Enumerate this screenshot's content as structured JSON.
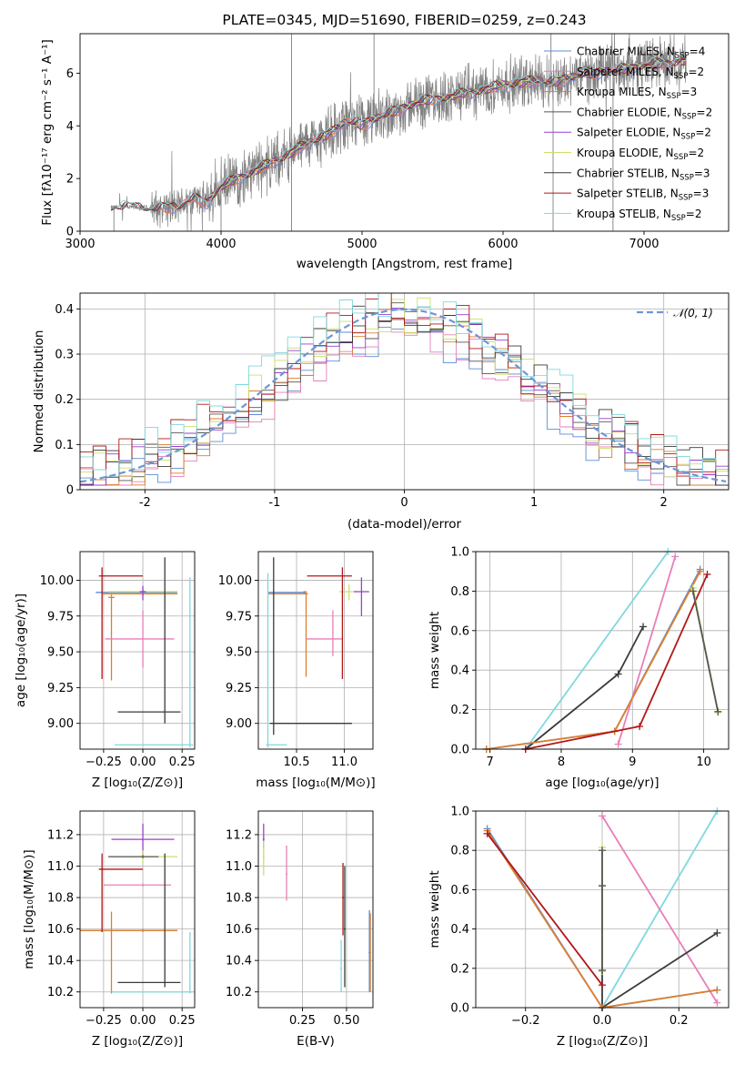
{
  "colors": {
    "chabrier_miles": "#5b8dd6",
    "salpeter_miles": "#e87fb8",
    "kroupa_miles": "#dd7f2e",
    "chabrier_elodie": "#555555",
    "salpeter_elodie": "#9b3fcf",
    "kroupa_elodie": "#c9e06a",
    "chabrier_stelib": "#3a3a3a",
    "salpeter_stelib": "#b01818",
    "kroupa_stelib": "#7fd8df",
    "data": "#808080",
    "gauss": "#6b96d8"
  },
  "legend_entries": [
    {
      "key": "chabrier_miles",
      "label": "Chabrier MILES, N",
      "sub": "SSP",
      "suffix": "=4"
    },
    {
      "key": "salpeter_miles",
      "label": "Salpeter MILES, N",
      "sub": "SSP",
      "suffix": "=2"
    },
    {
      "key": "kroupa_miles",
      "label": "Kroupa MILES, N",
      "sub": "SSP",
      "suffix": "=3"
    },
    {
      "key": "chabrier_elodie",
      "label": "Chabrier ELODIE, N",
      "sub": "SSP",
      "suffix": "=2"
    },
    {
      "key": "salpeter_elodie",
      "label": "Salpeter ELODIE, N",
      "sub": "SSP",
      "suffix": "=2"
    },
    {
      "key": "kroupa_elodie",
      "label": "Kroupa ELODIE, N",
      "sub": "SSP",
      "suffix": "=2"
    },
    {
      "key": "chabrier_stelib",
      "label": "Chabrier STELIB, N",
      "sub": "SSP",
      "suffix": "=3"
    },
    {
      "key": "salpeter_stelib",
      "label": "Salpeter STELIB, N",
      "sub": "SSP",
      "suffix": "=3"
    },
    {
      "key": "kroupa_stelib",
      "label": "Kroupa STELIB, N",
      "sub": "SSP",
      "suffix": "=2"
    }
  ],
  "chart_data": [
    {
      "id": "spectrum",
      "type": "line",
      "title": "PLATE=0345, MJD=51690, FIBERID=0259, z=0.243",
      "xlabel": "wavelength [Angstrom, rest frame]",
      "ylabel": "Flux [fλ10⁻¹⁷ erg cm⁻² s⁻¹ A⁻¹]",
      "xlim": [
        3000,
        7600
      ],
      "ylim": [
        0,
        7.5
      ],
      "xticks": [
        3000,
        4000,
        5000,
        6000,
        7000
      ],
      "yticks": [
        0,
        2,
        4,
        6
      ],
      "grid": false,
      "legend": "upper-right",
      "continuum": [
        [
          3220,
          0.85
        ],
        [
          3300,
          0.95
        ],
        [
          3500,
          0.85
        ],
        [
          3700,
          0.95
        ],
        [
          3800,
          1.25
        ],
        [
          3900,
          1.1
        ],
        [
          4000,
          1.7
        ],
        [
          4200,
          2.2
        ],
        [
          4400,
          2.7
        ],
        [
          4600,
          3.3
        ],
        [
          4800,
          3.8
        ],
        [
          4900,
          4.2
        ],
        [
          5000,
          4.05
        ],
        [
          5200,
          4.5
        ],
        [
          5400,
          4.9
        ],
        [
          5600,
          5.1
        ],
        [
          5800,
          5.3
        ],
        [
          6000,
          5.55
        ],
        [
          6200,
          5.7
        ],
        [
          6400,
          5.7
        ],
        [
          6600,
          6.0
        ],
        [
          6800,
          6.1
        ],
        [
          7000,
          6.3
        ],
        [
          7200,
          6.4
        ],
        [
          7300,
          6.5
        ]
      ],
      "data_range": [
        3220,
        7300
      ],
      "data_spikes": [
        [
          4500,
          7.5
        ],
        [
          5085,
          7.5
        ],
        [
          6340,
          7.5
        ],
        [
          6790,
          7.5
        ],
        [
          3240,
          0.0
        ],
        [
          4000,
          0.0
        ],
        [
          4500,
          0.0
        ],
        [
          6355,
          0.0
        ],
        [
          6780,
          0.0
        ]
      ]
    },
    {
      "id": "residuals",
      "type": "line",
      "xlabel": "(data-model)/error",
      "ylabel": "Normed distribution",
      "xlim": [
        -2.5,
        2.5
      ],
      "ylim": [
        0,
        0.435
      ],
      "xticks": [
        -2,
        -1,
        0,
        1,
        2
      ],
      "yticks": [
        0.0,
        0.1,
        0.2,
        0.3,
        0.4
      ],
      "grid": true,
      "legend": "upper-right",
      "gauss_label": "𝒩(0, 1)",
      "bin_width": 0.1
    },
    {
      "id": "age_vs_Z",
      "type": "scatter",
      "xlabel": "Z [log₁₀(Z/Z⊙)]",
      "ylabel": "age  [log₁₀(age/yr)]",
      "xlim": [
        -0.4,
        0.33
      ],
      "ylim": [
        8.82,
        10.2
      ],
      "xticks": [
        -0.25,
        0.0,
        0.25
      ],
      "xticklabels": [
        "−0.25",
        "0.00",
        "0.25"
      ],
      "yticks": [
        9.0,
        9.25,
        9.5,
        9.75,
        10.0
      ],
      "yticklabels": [
        "9.00",
        "9.25",
        "9.50",
        "9.75",
        "10.00"
      ],
      "grid": true,
      "points": [
        {
          "key": "chabrier_miles",
          "x": 0.0,
          "y": 9.915,
          "xerr": [
            0.3,
            0.22
          ],
          "yerr": [
            0.02,
            0.02
          ]
        },
        {
          "key": "kroupa_miles",
          "x": 0.0,
          "y": 9.905,
          "xerr": [
            0.26,
            0.22
          ],
          "yerr": [
            0.01,
            0.01
          ]
        },
        {
          "key": "kroupa_miles",
          "x": -0.2,
          "y": 9.88,
          "xerr": [
            0.02,
            0.02
          ],
          "yerr": [
            0.58,
            0.02
          ]
        },
        {
          "key": "kroupa_elodie",
          "x": 0.0,
          "y": 9.92,
          "xerr": [
            0.22,
            0.22
          ],
          "yerr": [
            0.02,
            0.02
          ]
        },
        {
          "key": "salpeter_elodie",
          "x": 0.0,
          "y": 9.92,
          "xerr": [
            0.02,
            0.02
          ],
          "yerr": [
            0.06,
            0.04
          ]
        },
        {
          "key": "salpeter_miles",
          "x": 0.0,
          "y": 9.59,
          "xerr": [
            0.24,
            0.2
          ],
          "yerr": [
            0.2,
            0.2
          ]
        },
        {
          "key": "salpeter_stelib",
          "x": -0.26,
          "y": 10.03,
          "xerr": [
            0.02,
            0.26
          ],
          "yerr": [
            0.72,
            0.06
          ]
        },
        {
          "key": "chabrier_stelib",
          "x": 0.14,
          "y": 9.08,
          "xerr": [
            0.3,
            0.1
          ],
          "yerr": [
            0.08,
            1.08
          ]
        },
        {
          "key": "kroupa_stelib",
          "x": 0.3,
          "y": 8.85,
          "xerr": [
            0.48,
            0.02
          ],
          "yerr": [
            0.02,
            1.17
          ]
        }
      ]
    },
    {
      "id": "age_vs_mass",
      "type": "scatter",
      "xlabel": "mass [log₁₀(M/M⊙)]",
      "ylabel": "",
      "xlim": [
        10.1,
        11.3
      ],
      "ylim": [
        8.82,
        10.2
      ],
      "xticks": [
        10.5,
        11.0
      ],
      "xticklabels": [
        "10.5",
        "11.0"
      ],
      "yticks": [
        9.0,
        9.25,
        9.5,
        9.75,
        10.0
      ],
      "yticklabels": [
        "9.00",
        "9.25",
        "9.50",
        "9.75",
        "10.00"
      ],
      "grid": true,
      "points": [
        {
          "key": "chabrier_miles",
          "x": 10.58,
          "y": 9.915,
          "xerr": [
            0.38,
            0.02
          ],
          "yerr": [
            0.01,
            0.01
          ]
        },
        {
          "key": "kroupa_miles",
          "x": 10.6,
          "y": 9.905,
          "xerr": [
            0.4,
            0.02
          ],
          "yerr": [
            0.58,
            0.02
          ]
        },
        {
          "key": "kroupa_elodie",
          "x": 11.05,
          "y": 9.92,
          "xerr": [
            0.1,
            0.1
          ],
          "yerr": [
            0.06,
            0.05
          ]
        },
        {
          "key": "salpeter_elodie",
          "x": 11.18,
          "y": 9.92,
          "xerr": [
            0.08,
            0.08
          ],
          "yerr": [
            0.17,
            0.1
          ]
        },
        {
          "key": "salpeter_miles",
          "x": 10.88,
          "y": 9.59,
          "xerr": [
            0.28,
            0.1
          ],
          "yerr": [
            0.12,
            0.2
          ]
        },
        {
          "key": "salpeter_stelib",
          "x": 10.98,
          "y": 10.03,
          "xerr": [
            0.37,
            0.1
          ],
          "yerr": [
            0.72,
            0.06
          ]
        },
        {
          "key": "chabrier_stelib",
          "x": 10.26,
          "y": 9.0,
          "xerr": [
            0.04,
            0.82
          ],
          "yerr": [
            0.08,
            1.16
          ]
        },
        {
          "key": "kroupa_stelib",
          "x": 10.2,
          "y": 8.85,
          "xerr": [
            0.02,
            0.2
          ],
          "yerr": [
            0.02,
            1.2
          ]
        }
      ]
    },
    {
      "id": "weight_vs_age",
      "type": "line",
      "xlabel": "age  [log₁₀(age/yr)]",
      "ylabel": "mass weight",
      "xlim": [
        6.8,
        10.35
      ],
      "ylim": [
        0,
        1.0
      ],
      "xticks": [
        7,
        8,
        9,
        10
      ],
      "xticklabels": [
        "7",
        "8",
        "9",
        "10"
      ],
      "yticks": [
        0,
        0.2,
        0.4,
        0.6,
        0.8,
        1.0
      ],
      "yticklabels": [
        "0.0",
        "0.2",
        "0.4",
        "0.6",
        "0.8",
        "1.0"
      ],
      "grid": true,
      "series": [
        {
          "key": "kroupa_stelib",
          "x": [
            7.5,
            9.5
          ],
          "y": [
            0.0,
            1.0
          ]
        },
        {
          "key": "salpeter_miles",
          "x": [
            8.8,
            9.6
          ],
          "y": [
            0.025,
            0.975
          ]
        },
        {
          "key": "chabrier_stelib",
          "x": [
            7.5,
            8.8,
            9.15
          ],
          "y": [
            0.0,
            0.38,
            0.62
          ]
        },
        {
          "key": "chabrier_miles",
          "x": [
            6.95,
            8.75,
            9.95
          ],
          "y": [
            0.0,
            0.09,
            0.91
          ]
        },
        {
          "key": "kroupa_miles",
          "x": [
            6.95,
            8.75,
            9.95
          ],
          "y": [
            0.0,
            0.09,
            0.9
          ]
        },
        {
          "key": "salpeter_stelib",
          "x": [
            7.5,
            9.1,
            10.05
          ],
          "y": [
            0.0,
            0.115,
            0.885
          ]
        },
        {
          "key": "kroupa_elodie",
          "x": [
            9.85,
            10.2
          ],
          "y": [
            0.815,
            0.185
          ]
        },
        {
          "key": "chabrier_elodie",
          "x": [
            9.85,
            10.2
          ],
          "y": [
            0.8,
            0.19
          ]
        }
      ]
    },
    {
      "id": "mass_vs_Z",
      "type": "scatter",
      "xlabel": "Z [log₁₀(Z/Z⊙)]",
      "ylabel": "mass [log₁₀(M/M⊙)]",
      "xlim": [
        -0.4,
        0.33
      ],
      "ylim": [
        10.1,
        11.35
      ],
      "xticks": [
        -0.25,
        0.0,
        0.25
      ],
      "xticklabels": [
        "−0.25",
        "0.00",
        "0.25"
      ],
      "yticks": [
        10.2,
        10.4,
        10.6,
        10.8,
        11.0,
        11.2
      ],
      "yticklabels": [
        "10.2",
        "10.4",
        "10.6",
        "10.8",
        "11.0",
        "11.2"
      ],
      "grid": true,
      "points": [
        {
          "key": "chabrier_miles",
          "x": 0.0,
          "y": 10.59,
          "xerr": [
            0.4,
            0.22
          ],
          "yerr": [
            0.01,
            0.01
          ]
        },
        {
          "key": "kroupa_miles",
          "x": -0.2,
          "y": 10.59,
          "xerr": [
            0.2,
            0.42
          ],
          "yerr": [
            0.4,
            0.12
          ]
        },
        {
          "key": "salpeter_elodie",
          "x": 0.0,
          "y": 11.17,
          "xerr": [
            0.2,
            0.2
          ],
          "yerr": [
            0.1,
            0.1
          ]
        },
        {
          "key": "kroupa_elodie",
          "x": 0.0,
          "y": 11.06,
          "xerr": [
            0.22,
            0.22
          ],
          "yerr": [
            0.04,
            0.04
          ]
        },
        {
          "key": "chabrier_elodie",
          "x": 0.0,
          "y": 11.06,
          "xerr": [
            0.22,
            0.1
          ],
          "yerr": [
            0.01,
            0.01
          ]
        },
        {
          "key": "salpeter_miles",
          "x": 0.0,
          "y": 10.88,
          "xerr": [
            0.25,
            0.18
          ],
          "yerr": [
            0.01,
            0.01
          ]
        },
        {
          "key": "salpeter_stelib",
          "x": -0.26,
          "y": 10.98,
          "xerr": [
            0.02,
            0.26
          ],
          "yerr": [
            0.4,
            0.1
          ]
        },
        {
          "key": "chabrier_stelib",
          "x": 0.14,
          "y": 10.26,
          "xerr": [
            0.3,
            0.1
          ],
          "yerr": [
            0.03,
            0.82
          ]
        },
        {
          "key": "kroupa_stelib",
          "x": 0.3,
          "y": 10.2,
          "xerr": [
            0.5,
            0.02
          ],
          "yerr": [
            0.01,
            0.38
          ]
        }
      ]
    },
    {
      "id": "mass_vs_ebv",
      "type": "scatter",
      "xlabel": "E(B-V)",
      "ylabel": "",
      "xlim": [
        0.0,
        0.65
      ],
      "ylim": [
        10.1,
        11.35
      ],
      "xticks": [
        0.25,
        0.5
      ],
      "xticklabels": [
        "0.25",
        "0.50"
      ],
      "yticks": [
        10.2,
        10.4,
        10.6,
        10.8,
        11.0,
        11.2
      ],
      "yticklabels": [
        "10.2",
        "10.4",
        "10.6",
        "10.8",
        "11.0",
        "11.2"
      ],
      "grid": true,
      "points": [
        {
          "key": "salpeter_elodie",
          "x": 0.03,
          "y": 11.17,
          "xerr": [
            0.005,
            0.005
          ],
          "yerr": [
            0.06,
            0.1
          ]
        },
        {
          "key": "kroupa_elodie",
          "x": 0.03,
          "y": 11.06,
          "xerr": [
            0.005,
            0.005
          ],
          "yerr": [
            0.12,
            0.1
          ]
        },
        {
          "key": "salpeter_miles",
          "x": 0.16,
          "y": 10.95,
          "xerr": [
            0.005,
            0.005
          ],
          "yerr": [
            0.17,
            0.18
          ]
        },
        {
          "key": "salpeter_stelib",
          "x": 0.48,
          "y": 10.8,
          "xerr": [
            0.005,
            0.005
          ],
          "yerr": [
            0.24,
            0.22
          ]
        },
        {
          "key": "chabrier_stelib",
          "x": 0.49,
          "y": 10.6,
          "xerr": [
            0.005,
            0.005
          ],
          "yerr": [
            0.37,
            0.4
          ]
        },
        {
          "key": "kroupa_stelib",
          "x": 0.47,
          "y": 10.35,
          "xerr": [
            0.005,
            0.005
          ],
          "yerr": [
            0.15,
            0.18
          ]
        },
        {
          "key": "chabrier_miles",
          "x": 0.63,
          "y": 10.45,
          "xerr": [
            0.005,
            0.005
          ],
          "yerr": [
            0.25,
            0.27
          ]
        },
        {
          "key": "kroupa_miles",
          "x": 0.635,
          "y": 10.45,
          "xerr": [
            0.005,
            0.005
          ],
          "yerr": [
            0.25,
            0.25
          ]
        }
      ]
    },
    {
      "id": "weight_vs_Z",
      "type": "line",
      "xlabel": "Z [log₁₀(Z/Z⊙)]",
      "ylabel": "mass weight",
      "xlim": [
        -0.33,
        0.33
      ],
      "ylim": [
        0,
        1.0
      ],
      "xticks": [
        -0.2,
        0.0,
        0.2
      ],
      "xticklabels": [
        "−0.2",
        "0.0",
        "0.2"
      ],
      "yticks": [
        0,
        0.2,
        0.4,
        0.6,
        0.8,
        1.0
      ],
      "yticklabels": [
        "0.0",
        "0.2",
        "0.4",
        "0.6",
        "0.8",
        "1.0"
      ],
      "grid": true,
      "series": [
        {
          "key": "kroupa_stelib",
          "x": [
            0.0,
            0.3
          ],
          "y": [
            0.0,
            1.0
          ]
        },
        {
          "key": "salpeter_miles",
          "x": [
            0.0,
            0.3
          ],
          "y": [
            0.975,
            0.025
          ]
        },
        {
          "key": "chabrier_stelib",
          "x": [
            0.0,
            0.0,
            0.3
          ],
          "y": [
            0.62,
            0.0,
            0.38
          ]
        },
        {
          "key": "chabrier_miles",
          "x": [
            -0.3,
            0.0,
            0.3
          ],
          "y": [
            0.91,
            0.0,
            0.09
          ]
        },
        {
          "key": "kroupa_miles",
          "x": [
            -0.3,
            0.0,
            0.3
          ],
          "y": [
            0.9,
            0.0,
            0.09
          ]
        },
        {
          "key": "salpeter_stelib",
          "x": [
            -0.3,
            0.0
          ],
          "y": [
            0.885,
            0.115
          ]
        },
        {
          "key": "kroupa_elodie",
          "x": [
            0.0,
            0.0
          ],
          "y": [
            0.815,
            0.185
          ]
        },
        {
          "key": "chabrier_elodie",
          "x": [
            0.0,
            0.0
          ],
          "y": [
            0.8,
            0.19
          ]
        }
      ]
    }
  ]
}
